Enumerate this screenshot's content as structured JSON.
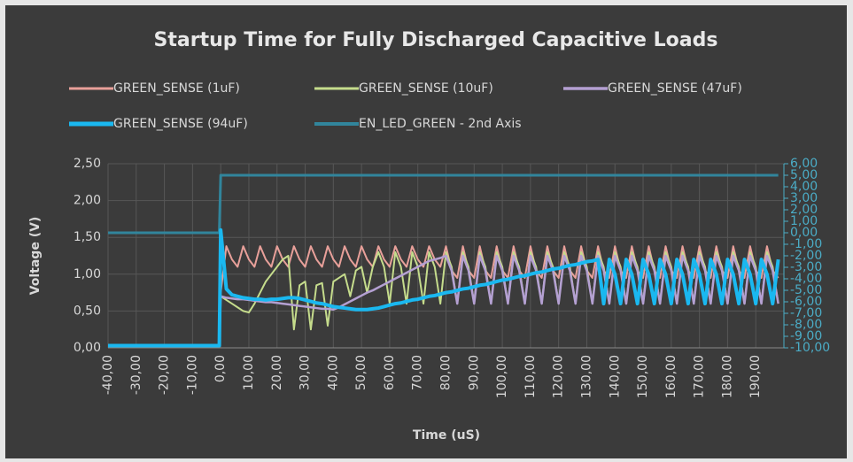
{
  "chart_data": {
    "type": "line",
    "title": "Startup Time for Fully Discharged Capacitive Loads",
    "xlabel": "Time (uS)",
    "ylabel": "Voltage (V)",
    "x": [
      -40,
      -0.5,
      0,
      2,
      4,
      6,
      8,
      10,
      12,
      14,
      16,
      18,
      20,
      22,
      24,
      26,
      28,
      30,
      32,
      34,
      36,
      38,
      40,
      42,
      44,
      46,
      48,
      50,
      52,
      54,
      56,
      58,
      60,
      62,
      64,
      66,
      68,
      70,
      72,
      74,
      76,
      78,
      80,
      82,
      84,
      86,
      88,
      90,
      92,
      94,
      96,
      98,
      100,
      102,
      104,
      106,
      108,
      110,
      112,
      114,
      116,
      118,
      120,
      122,
      124,
      126,
      128,
      130,
      132,
      134,
      136,
      138,
      140,
      142,
      144,
      146,
      148,
      150,
      152,
      154,
      156,
      158,
      160,
      162,
      164,
      166,
      168,
      170,
      172,
      174,
      176,
      178,
      180,
      182,
      184,
      186,
      188,
      190,
      192,
      194,
      196,
      198
    ],
    "series": [
      {
        "name": "GREEN_SENSE (1uF)",
        "color": "#e8a09a",
        "width": 2,
        "values": [
          0.03,
          0.03,
          0.75,
          1.38,
          1.2,
          1.1,
          1.38,
          1.2,
          1.1,
          1.38,
          1.2,
          1.1,
          1.38,
          1.2,
          1.1,
          1.38,
          1.2,
          1.1,
          1.38,
          1.2,
          1.1,
          1.38,
          1.2,
          1.1,
          1.38,
          1.2,
          1.1,
          1.38,
          1.2,
          1.1,
          1.38,
          1.2,
          1.1,
          1.38,
          1.2,
          1.1,
          1.38,
          1.2,
          1.1,
          1.38,
          1.2,
          1.1,
          1.38,
          1.05,
          0.95,
          1.38,
          1.05,
          0.95,
          1.38,
          1.05,
          0.95,
          1.38,
          1.05,
          0.95,
          1.38,
          1.05,
          0.95,
          1.38,
          1.05,
          0.95,
          1.38,
          1.05,
          0.95,
          1.38,
          1.05,
          0.95,
          1.38,
          1.05,
          0.95,
          1.38,
          1.05,
          0.95,
          1.38,
          1.05,
          0.95,
          1.38,
          1.05,
          0.95,
          1.38,
          1.05,
          0.95,
          1.38,
          1.05,
          0.95,
          1.38,
          1.05,
          0.95,
          1.38,
          1.05,
          0.95,
          1.38,
          1.05,
          0.95,
          1.38,
          1.05,
          0.95,
          1.38,
          1.05,
          0.95,
          1.38,
          1.05,
          0.95
        ]
      },
      {
        "name": "GREEN_SENSE (10uF)",
        "color": "#c5dc8c",
        "width": 2,
        "values": [
          0.03,
          0.03,
          0.7,
          0.65,
          0.6,
          0.55,
          0.5,
          0.48,
          0.6,
          0.75,
          0.9,
          1.0,
          1.1,
          1.2,
          1.25,
          0.25,
          0.85,
          0.9,
          0.25,
          0.85,
          0.88,
          0.3,
          0.9,
          0.95,
          1.0,
          0.7,
          1.05,
          1.1,
          0.75,
          1.1,
          1.3,
          1.1,
          0.6,
          1.3,
          1.1,
          0.6,
          1.3,
          1.1,
          0.6,
          1.3,
          1.1,
          0.6,
          1.3,
          1.1,
          0.6,
          1.3,
          1.1,
          0.6,
          1.3,
          1.1,
          0.6,
          1.3,
          1.1,
          0.6,
          1.3,
          1.1,
          0.6,
          1.3,
          1.1,
          0.6,
          1.3,
          1.1,
          0.6,
          1.3,
          1.1,
          0.6,
          1.3,
          1.1,
          0.6,
          1.3,
          1.1,
          0.6,
          1.3,
          1.1,
          0.6,
          1.3,
          1.1,
          0.6,
          1.3,
          1.1,
          0.6,
          1.3,
          1.1,
          0.6,
          1.3,
          1.1,
          0.6,
          1.3,
          1.1,
          0.6,
          1.3,
          1.1,
          0.6,
          1.3,
          1.1,
          0.6,
          1.3,
          1.1,
          0.6,
          1.3,
          1.1,
          0.6
        ]
      },
      {
        "name": "GREEN_SENSE (47uF)",
        "color": "#b4a0d2",
        "width": 2.5,
        "values": [
          0.03,
          0.03,
          0.7,
          0.68,
          0.67,
          0.66,
          0.66,
          0.65,
          0.64,
          0.63,
          0.62,
          0.62,
          0.61,
          0.6,
          0.59,
          0.58,
          0.57,
          0.56,
          0.55,
          0.54,
          0.53,
          0.53,
          0.52,
          0.55,
          0.59,
          0.63,
          0.67,
          0.71,
          0.75,
          0.78,
          0.82,
          0.86,
          0.9,
          0.94,
          0.98,
          1.02,
          1.06,
          1.1,
          1.14,
          1.18,
          1.2,
          1.22,
          1.25,
          1.05,
          0.6,
          1.25,
          1.05,
          0.6,
          1.25,
          1.05,
          0.6,
          1.25,
          1.05,
          0.6,
          1.25,
          1.05,
          0.6,
          1.25,
          1.05,
          0.6,
          1.25,
          1.05,
          0.6,
          1.25,
          1.05,
          0.6,
          1.25,
          1.05,
          0.6,
          1.25,
          1.05,
          0.6,
          1.25,
          1.05,
          0.6,
          1.25,
          1.05,
          0.6,
          1.25,
          1.05,
          0.6,
          1.25,
          1.05,
          0.6,
          1.25,
          1.05,
          0.6,
          1.25,
          1.05,
          0.6,
          1.25,
          1.05,
          0.6,
          1.25,
          1.05,
          0.6,
          1.25,
          1.05,
          0.6,
          1.25,
          1.05,
          0.6
        ]
      },
      {
        "name": "GREEN_SENSE (94uF)",
        "color": "#1ab8f0",
        "width": 4,
        "values": [
          0.03,
          0.03,
          1.6,
          0.8,
          0.72,
          0.7,
          0.68,
          0.67,
          0.66,
          0.66,
          0.65,
          0.66,
          0.66,
          0.67,
          0.68,
          0.68,
          0.67,
          0.65,
          0.63,
          0.61,
          0.6,
          0.58,
          0.56,
          0.55,
          0.54,
          0.53,
          0.52,
          0.52,
          0.52,
          0.53,
          0.54,
          0.56,
          0.58,
          0.6,
          0.61,
          0.63,
          0.65,
          0.66,
          0.68,
          0.7,
          0.71,
          0.73,
          0.75,
          0.76,
          0.78,
          0.8,
          0.81,
          0.83,
          0.85,
          0.86,
          0.88,
          0.9,
          0.92,
          0.93,
          0.95,
          0.97,
          0.98,
          1.0,
          1.02,
          1.03,
          1.05,
          1.07,
          1.08,
          1.1,
          1.12,
          1.13,
          1.15,
          1.17,
          1.18,
          1.2,
          0.6,
          1.2,
          1.0,
          0.6,
          1.2,
          1.0,
          0.6,
          1.2,
          1.0,
          0.6,
          1.2,
          1.0,
          0.6,
          1.2,
          1.0,
          0.6,
          1.2,
          1.0,
          0.6,
          1.2,
          1.0,
          0.6,
          1.2,
          1.0,
          0.6,
          1.2,
          1.0,
          0.6,
          1.2,
          1.0,
          0.6,
          1.2
        ]
      },
      {
        "name": "EN_LED_GREEN - 2nd Axis",
        "color": "#31859c",
        "width": 3,
        "axis": "y2",
        "values": [
          0,
          0,
          5,
          5,
          5,
          5,
          5,
          5,
          5,
          5,
          5,
          5,
          5,
          5,
          5,
          5,
          5,
          5,
          5,
          5,
          5,
          5,
          5,
          5,
          5,
          5,
          5,
          5,
          5,
          5,
          5,
          5,
          5,
          5,
          5,
          5,
          5,
          5,
          5,
          5,
          5,
          5,
          5,
          5,
          5,
          5,
          5,
          5,
          5,
          5,
          5,
          5,
          5,
          5,
          5,
          5,
          5,
          5,
          5,
          5,
          5,
          5,
          5,
          5,
          5,
          5,
          5,
          5,
          5,
          5,
          5,
          5,
          5,
          5,
          5,
          5,
          5,
          5,
          5,
          5,
          5,
          5,
          5,
          5,
          5,
          5,
          5,
          5,
          5,
          5,
          5,
          5,
          5,
          5,
          5,
          5,
          5,
          5,
          5,
          5,
          5,
          5
        ]
      }
    ],
    "xlim": [
      -40,
      200
    ],
    "xticks": [
      {
        "value": -40,
        "label": "-40,00"
      },
      {
        "value": -30,
        "label": "-30,00"
      },
      {
        "value": -20,
        "label": "-20,00"
      },
      {
        "value": -10,
        "label": "-10,00"
      },
      {
        "value": 0,
        "label": "0,00"
      },
      {
        "value": 10,
        "label": "10,00"
      },
      {
        "value": 20,
        "label": "20,00"
      },
      {
        "value": 30,
        "label": "30,00"
      },
      {
        "value": 40,
        "label": "40,00"
      },
      {
        "value": 50,
        "label": "50,00"
      },
      {
        "value": 60,
        "label": "60,00"
      },
      {
        "value": 70,
        "label": "70,00"
      },
      {
        "value": 80,
        "label": "80,00"
      },
      {
        "value": 90,
        "label": "90,00"
      },
      {
        "value": 100,
        "label": "100,00"
      },
      {
        "value": 110,
        "label": "110,00"
      },
      {
        "value": 120,
        "label": "120,00"
      },
      {
        "value": 130,
        "label": "130,00"
      },
      {
        "value": 140,
        "label": "140,00"
      },
      {
        "value": 150,
        "label": "150,00"
      },
      {
        "value": 160,
        "label": "160,00"
      },
      {
        "value": 170,
        "label": "170,00"
      },
      {
        "value": 180,
        "label": "180,00"
      },
      {
        "value": 190,
        "label": "190,00"
      }
    ],
    "ylim": [
      0,
      2.5
    ],
    "yticks": [
      {
        "value": 0,
        "label": "0,00"
      },
      {
        "value": 0.5,
        "label": "0,50"
      },
      {
        "value": 1,
        "label": "1,00"
      },
      {
        "value": 1.5,
        "label": "1,50"
      },
      {
        "value": 2,
        "label": "2,00"
      },
      {
        "value": 2.5,
        "label": "2,50"
      }
    ],
    "y2lim": [
      -10,
      6
    ],
    "y2ticks": [
      {
        "value": -10,
        "label": "-10,00"
      },
      {
        "value": -9,
        "label": "-9,00"
      },
      {
        "value": -8,
        "label": "-8,00"
      },
      {
        "value": -7,
        "label": "-7,00"
      },
      {
        "value": -6,
        "label": "-6,00"
      },
      {
        "value": -5,
        "label": "-5,00"
      },
      {
        "value": -4,
        "label": "-4,00"
      },
      {
        "value": -3,
        "label": "-3,00"
      },
      {
        "value": -2,
        "label": "-2,00"
      },
      {
        "value": -1,
        "label": "-1,00"
      },
      {
        "value": 0,
        "label": "0,00"
      },
      {
        "value": 1,
        "label": "1,00"
      },
      {
        "value": 2,
        "label": "2,00"
      },
      {
        "value": 3,
        "label": "3,00"
      },
      {
        "value": 4,
        "label": "4,00"
      },
      {
        "value": 5,
        "label": "5,00"
      },
      {
        "value": 6,
        "label": "6,00"
      }
    ],
    "grid": true,
    "legend": "top"
  }
}
